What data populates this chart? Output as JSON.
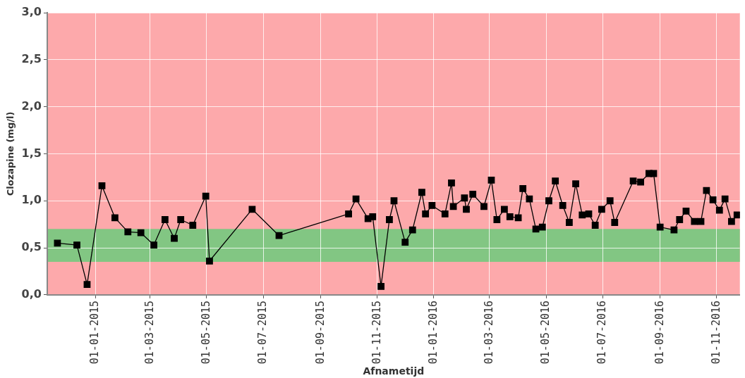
{
  "chart_data": {
    "type": "line",
    "xlabel": "Afnametijd",
    "ylabel": "Clozapine (mg/l)",
    "x": [
      "2014-11-21",
      "2014-12-12",
      "2014-12-23",
      "2015-01-08",
      "2015-01-22",
      "2015-02-05",
      "2015-02-19",
      "2015-03-05",
      "2015-03-17",
      "2015-03-27",
      "2015-04-03",
      "2015-04-16",
      "2015-04-30",
      "2015-05-04",
      "2015-06-19",
      "2015-07-18",
      "2015-10-01",
      "2015-10-09",
      "2015-10-22",
      "2015-10-27",
      "2015-11-05",
      "2015-11-14",
      "2015-11-19",
      "2015-12-01",
      "2015-12-09",
      "2015-12-19",
      "2015-12-23",
      "2015-12-30",
      "2016-01-13",
      "2016-01-20",
      "2016-01-22",
      "2016-02-03",
      "2016-02-05",
      "2016-02-12",
      "2016-02-24",
      "2016-03-03",
      "2016-03-09",
      "2016-03-17",
      "2016-03-23",
      "2016-04-01",
      "2016-04-06",
      "2016-04-13",
      "2016-04-20",
      "2016-04-27",
      "2016-05-04",
      "2016-05-11",
      "2016-05-19",
      "2016-05-26",
      "2016-06-02",
      "2016-06-09",
      "2016-06-16",
      "2016-06-23",
      "2016-06-30",
      "2016-07-09",
      "2016-07-14",
      "2016-08-03",
      "2016-08-11",
      "2016-08-20",
      "2016-08-25",
      "2016-09-01",
      "2016-09-16",
      "2016-09-22",
      "2016-09-29",
      "2016-10-08",
      "2016-10-15",
      "2016-10-21",
      "2016-10-28",
      "2016-11-04",
      "2016-11-10",
      "2016-11-17",
      "2016-11-23"
    ],
    "series": [
      {
        "color": "#000000",
        "values": [
          0.55,
          0.53,
          0.11,
          1.16,
          0.82,
          0.67,
          0.66,
          0.53,
          0.8,
          0.6,
          0.8,
          0.74,
          1.05,
          0.36,
          0.91,
          0.63,
          0.86,
          1.02,
          0.81,
          0.83,
          0.09,
          0.8,
          1.0,
          0.56,
          0.69,
          1.09,
          0.86,
          0.95,
          0.86,
          1.19,
          0.94,
          1.03,
          0.91,
          1.07,
          0.94,
          1.22,
          0.8,
          0.91,
          0.83,
          0.82,
          1.13,
          1.02,
          0.7,
          0.72,
          1.0,
          1.21,
          0.95,
          0.77,
          1.18,
          0.85,
          0.86,
          0.74,
          0.91,
          1.0,
          0.77,
          1.21,
          1.2,
          1.29,
          1.29,
          0.72,
          0.69,
          0.8,
          0.89,
          0.78,
          0.78,
          1.11,
          1.01,
          0.9,
          1.02,
          0.78,
          0.85
        ]
      }
    ],
    "xlim": [
      "2014-11-10",
      "2016-11-26"
    ],
    "xticks": [
      {
        "value": "2015-01-01",
        "label": "01-01-2015"
      },
      {
        "value": "2015-03-01",
        "label": "01-03-2015"
      },
      {
        "value": "2015-05-01",
        "label": "01-05-2015"
      },
      {
        "value": "2015-07-01",
        "label": "01-07-2015"
      },
      {
        "value": "2015-09-01",
        "label": "01-09-2015"
      },
      {
        "value": "2015-11-01",
        "label": "01-11-2015"
      },
      {
        "value": "2016-01-01",
        "label": "01-01-2016"
      },
      {
        "value": "2016-03-01",
        "label": "01-03-2016"
      },
      {
        "value": "2016-05-01",
        "label": "01-05-2016"
      },
      {
        "value": "2016-07-01",
        "label": "01-07-2016"
      },
      {
        "value": "2016-09-01",
        "label": "01-09-2016"
      },
      {
        "value": "2016-11-01",
        "label": "01-11-2016"
      }
    ],
    "ylim": [
      0,
      3
    ],
    "yticks": [
      {
        "value": 0,
        "label": "0,0"
      },
      {
        "value": 0.5,
        "label": "0,5"
      },
      {
        "value": 1,
        "label": "1,0"
      },
      {
        "value": 1.5,
        "label": "1,5"
      },
      {
        "value": 2,
        "label": "2,0"
      },
      {
        "value": 2.5,
        "label": "2,5"
      },
      {
        "value": 3,
        "label": "3,0"
      }
    ],
    "bands": [
      {
        "axis": "y",
        "from": 0,
        "to": 3,
        "color": "#fda9ab"
      },
      {
        "axis": "y",
        "from": 0.35,
        "to": 0.7,
        "color": "#82c683"
      }
    ],
    "grid": true,
    "legend": false,
    "marker": "square",
    "line_style": "solid"
  }
}
